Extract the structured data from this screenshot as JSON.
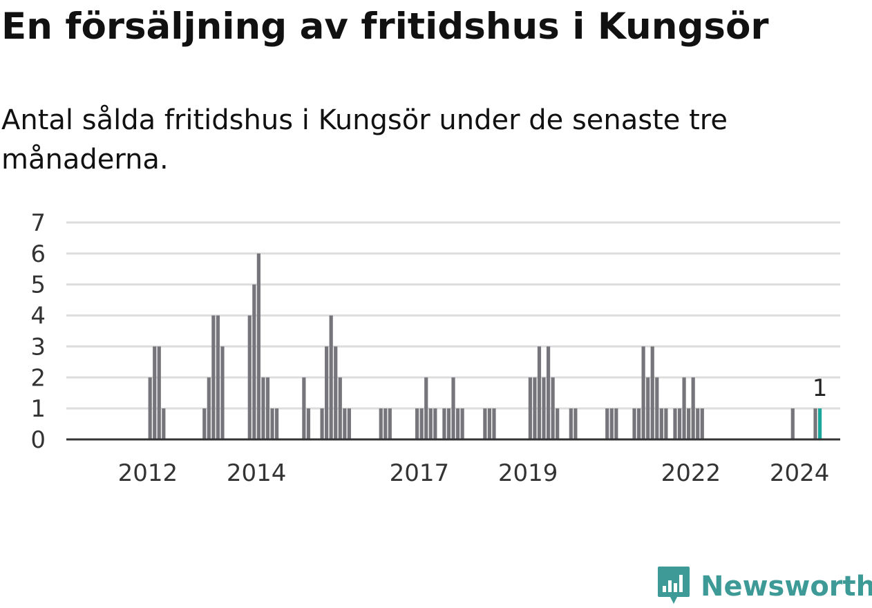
{
  "title": "En försäljning av fritidshus i Kungsör",
  "subtitle": "Antal sålda fritidshus i Kungsör under de senaste tre månaderna.",
  "logo": {
    "text": "Newsworthy",
    "icon": "newsworthy-chat-chart-icon"
  },
  "colors": {
    "bar": "#75757b",
    "highlight": "#1aa69b",
    "grid": "#dddddd",
    "axis": "#333333",
    "brand": "#3d9a96"
  },
  "chart_data": {
    "type": "bar",
    "x_type": "month",
    "ylim": [
      0,
      7
    ],
    "yticks": [
      0,
      1,
      2,
      3,
      4,
      5,
      6,
      7
    ],
    "xticks": [
      "2012",
      "2014",
      "2017",
      "2019",
      "2022",
      "2024"
    ],
    "grid": true,
    "legend": "none",
    "series": [
      {
        "points": [
          [
            "2012-07",
            2
          ],
          [
            "2012-08",
            3
          ],
          [
            "2012-09",
            3
          ],
          [
            "2012-10",
            1
          ],
          [
            "2013-07",
            1
          ],
          [
            "2013-08",
            2
          ],
          [
            "2013-09",
            4
          ],
          [
            "2013-10",
            4
          ],
          [
            "2013-11",
            3
          ],
          [
            "2014-05",
            4
          ],
          [
            "2014-06",
            5
          ],
          [
            "2014-07",
            6
          ],
          [
            "2014-08",
            2
          ],
          [
            "2014-09",
            2
          ],
          [
            "2014-10",
            1
          ],
          [
            "2014-11",
            1
          ],
          [
            "2015-05",
            2
          ],
          [
            "2015-06",
            1
          ],
          [
            "2015-09",
            1
          ],
          [
            "2015-10",
            3
          ],
          [
            "2015-11",
            4
          ],
          [
            "2015-12",
            3
          ],
          [
            "2016-01",
            2
          ],
          [
            "2016-02",
            1
          ],
          [
            "2016-03",
            1
          ],
          [
            "2016-10",
            1
          ],
          [
            "2016-11",
            1
          ],
          [
            "2016-12",
            1
          ],
          [
            "2017-06",
            1
          ],
          [
            "2017-07",
            1
          ],
          [
            "2017-08",
            2
          ],
          [
            "2017-09",
            1
          ],
          [
            "2017-10",
            1
          ],
          [
            "2017-12",
            1
          ],
          [
            "2018-01",
            1
          ],
          [
            "2018-02",
            2
          ],
          [
            "2018-03",
            1
          ],
          [
            "2018-04",
            1
          ],
          [
            "2018-09",
            1
          ],
          [
            "2018-10",
            1
          ],
          [
            "2018-11",
            1
          ],
          [
            "2019-07",
            2
          ],
          [
            "2019-08",
            2
          ],
          [
            "2019-09",
            3
          ],
          [
            "2019-10",
            2
          ],
          [
            "2019-11",
            3
          ],
          [
            "2019-12",
            2
          ],
          [
            "2020-01",
            1
          ],
          [
            "2020-04",
            1
          ],
          [
            "2020-05",
            1
          ],
          [
            "2020-12",
            1
          ],
          [
            "2021-01",
            1
          ],
          [
            "2021-02",
            1
          ],
          [
            "2021-06",
            1
          ],
          [
            "2021-07",
            1
          ],
          [
            "2021-08",
            3
          ],
          [
            "2021-09",
            2
          ],
          [
            "2021-10",
            3
          ],
          [
            "2021-11",
            2
          ],
          [
            "2021-12",
            1
          ],
          [
            "2022-01",
            1
          ],
          [
            "2022-03",
            1
          ],
          [
            "2022-04",
            1
          ],
          [
            "2022-05",
            2
          ],
          [
            "2022-06",
            1
          ],
          [
            "2022-07",
            2
          ],
          [
            "2022-08",
            1
          ],
          [
            "2022-09",
            1
          ],
          [
            "2024-05",
            1
          ],
          [
            "2024-10",
            1
          ],
          [
            "2024-11",
            1
          ]
        ]
      }
    ],
    "highlight": {
      "x": "2024-11",
      "value": 1,
      "label": "1"
    }
  }
}
